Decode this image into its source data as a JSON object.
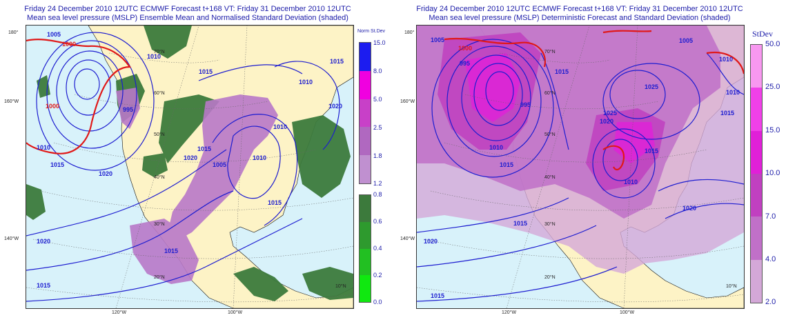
{
  "left_panel": {
    "title_line1": "Friday 24 December 2010 12UTC ECMWF Forecast t+168  VT: Friday 31 December 2010 12UTC",
    "title_line2": "Mean sea level pressure (MSLP) Ensemble Mean and Normalised Standard Deviation (shaded)",
    "legend_title": "Norm St.Dev",
    "legend_upper": [
      {
        "label": "15.0",
        "color": "#1c1cf0"
      },
      {
        "label": "8.0",
        "color": "#f000e0"
      },
      {
        "label": "5.0",
        "color": "#c840c8"
      },
      {
        "label": "2.5",
        "color": "#b068c0"
      },
      {
        "label": "1.8",
        "color": "#c090d0"
      },
      {
        "label": "1.2",
        "color": ""
      }
    ],
    "legend_lower": [
      {
        "label": "0.8",
        "color": "#3c7a3c"
      },
      {
        "label": "0.6",
        "color": "#2e9a2e"
      },
      {
        "label": "0.4",
        "color": "#22c022"
      },
      {
        "label": "0.2",
        "color": "#10e810"
      },
      {
        "label": "0.0",
        "color": ""
      }
    ],
    "isobar_labels": [
      "1005",
      "1000",
      "1000",
      "1010",
      "1015",
      "1020",
      "1020",
      "1015",
      "1005",
      "1010",
      "1020",
      "1015",
      "1015",
      "1020",
      "1015",
      "1015",
      "1010",
      "995",
      "1010",
      "1015",
      "1010"
    ],
    "grid_labels": [
      "70°N",
      "60°N",
      "50°N",
      "40°N",
      "30°N",
      "20°N",
      "10°N"
    ],
    "edge_labels": {
      "lon_top": "180°",
      "lon_left1": "160°W",
      "lon_left2": "140°W",
      "lon_bot1": "120°W",
      "lon_bot2": "100°W"
    }
  },
  "right_panel": {
    "title_line1": "Friday 24 December 2010 12UTC ECMWF Forecast t+168  VT: Friday 31 December 2010 12UTC",
    "title_line2": "Mean sea level pressure (MSLP) Deterministic Forecast and Standard Deviation (shaded)",
    "legend_title": "StDev",
    "legend": [
      {
        "label": "50.0",
        "color": "#f898f0"
      },
      {
        "label": "25.0",
        "color": "#f040e8"
      },
      {
        "label": "15.0",
        "color": "#e020d8"
      },
      {
        "label": "10.0",
        "color": "#c040c0"
      },
      {
        "label": "7.0",
        "color": "#c070c8"
      },
      {
        "label": "4.0",
        "color": "#d4a8d8"
      },
      {
        "label": "2.0",
        "color": ""
      }
    ],
    "isobar_labels": [
      "1000",
      "995",
      "1005",
      "1010",
      "1015",
      "1025",
      "1025",
      "1020",
      "1015",
      "1010",
      "1005",
      "1010",
      "1015",
      "1020",
      "1020",
      "1015",
      "1015",
      "995",
      "1010",
      "1015"
    ],
    "grid_labels": [
      "70°N",
      "60°N",
      "50°N",
      "40°N",
      "30°N",
      "20°N",
      "10°N"
    ],
    "edge_labels": {
      "lon_top": "180°",
      "lon_left1": "160°W",
      "lon_left2": "140°W",
      "lon_bot1": "120°W",
      "lon_bot2": "100°W"
    }
  }
}
